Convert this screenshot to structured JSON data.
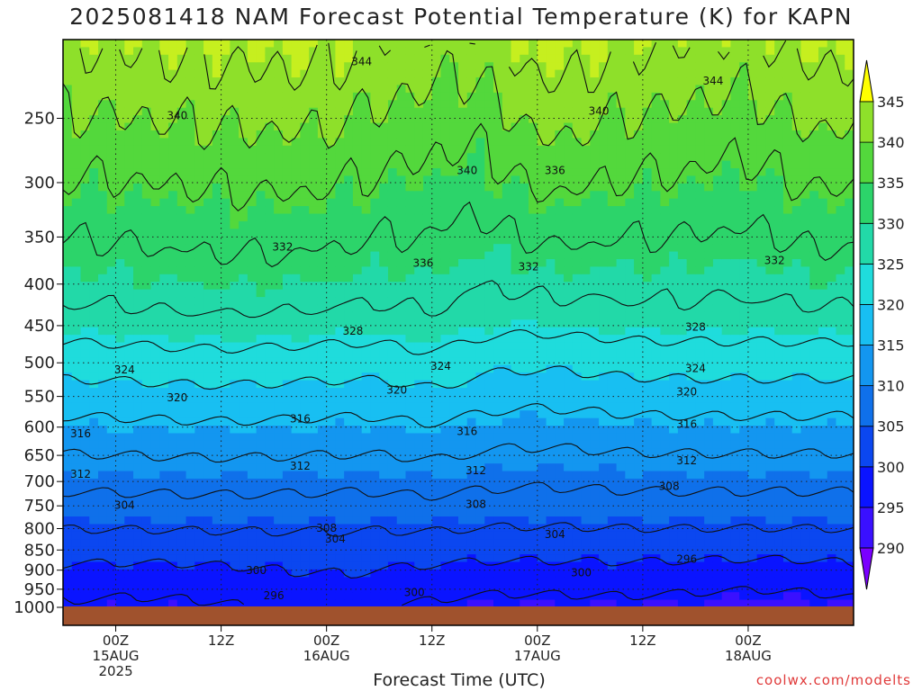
{
  "title": "2025081418 NAM Forecast Potential Temperature (K) for KAPN",
  "credit": "coolwx.com/modelts",
  "chart_data": {
    "type": "contour",
    "title": "2025081418 NAM Forecast Potential Temperature (K) for KAPN",
    "xlabel": "Forecast Time (UTC)",
    "ylabel": "",
    "y_scale": "log-pressure",
    "y_range_hPa": [
      200,
      1000
    ],
    "x_range_hours": [
      -6,
      84
    ],
    "y_ticks": [
      250,
      300,
      350,
      400,
      450,
      500,
      550,
      600,
      650,
      700,
      750,
      800,
      850,
      900,
      950,
      1000
    ],
    "x_ticks": [
      {
        "hour": 0,
        "lines": [
          "00Z",
          "15AUG",
          "2025"
        ]
      },
      {
        "hour": 12,
        "lines": [
          "12Z"
        ]
      },
      {
        "hour": 24,
        "lines": [
          "00Z",
          "16AUG"
        ]
      },
      {
        "hour": 36,
        "lines": [
          "12Z"
        ]
      },
      {
        "hour": 48,
        "lines": [
          "00Z",
          "17AUG"
        ]
      },
      {
        "hour": 60,
        "lines": [
          "12Z"
        ]
      },
      {
        "hour": 72,
        "lines": [
          "00Z",
          "18AUG"
        ]
      }
    ],
    "colorbar": {
      "levels": [
        290,
        295,
        300,
        305,
        310,
        315,
        320,
        325,
        330,
        335,
        340,
        345
      ],
      "colors": [
        "#7a00ff",
        "#3a10ff",
        "#0a14ff",
        "#0b47f0",
        "#0f70ea",
        "#1396f0",
        "#18bff2",
        "#1fdcdc",
        "#22d9a8",
        "#2cd46a",
        "#53d83c",
        "#8ee02a",
        "#c6ef1f",
        "#ffff00"
      ]
    },
    "contour_labels": [
      {
        "value": 344,
        "hour": 28,
        "p": 213
      },
      {
        "value": 344,
        "hour": 68,
        "p": 225
      },
      {
        "value": 340,
        "hour": 7,
        "p": 248
      },
      {
        "value": 340,
        "hour": 40,
        "p": 290
      },
      {
        "value": 340,
        "hour": 55,
        "p": 245
      },
      {
        "value": 336,
        "hour": 35,
        "p": 377
      },
      {
        "value": 336,
        "hour": 50,
        "p": 290
      },
      {
        "value": 332,
        "hour": 19,
        "p": 360
      },
      {
        "value": 332,
        "hour": 47,
        "p": 381
      },
      {
        "value": 332,
        "hour": 75,
        "p": 374
      },
      {
        "value": 328,
        "hour": 27,
        "p": 457
      },
      {
        "value": 328,
        "hour": 66,
        "p": 452
      },
      {
        "value": 324,
        "hour": 1,
        "p": 510
      },
      {
        "value": 324,
        "hour": 37,
        "p": 505
      },
      {
        "value": 324,
        "hour": 66,
        "p": 508
      },
      {
        "value": 320,
        "hour": 7,
        "p": 552
      },
      {
        "value": 320,
        "hour": 32,
        "p": 540
      },
      {
        "value": 320,
        "hour": 65,
        "p": 543
      },
      {
        "value": 316,
        "hour": -4,
        "p": 611
      },
      {
        "value": 316,
        "hour": 21,
        "p": 586
      },
      {
        "value": 316,
        "hour": 40,
        "p": 607
      },
      {
        "value": 316,
        "hour": 65,
        "p": 595
      },
      {
        "value": 312,
        "hour": -4,
        "p": 686
      },
      {
        "value": 312,
        "hour": 21,
        "p": 670
      },
      {
        "value": 312,
        "hour": 41,
        "p": 679
      },
      {
        "value": 312,
        "hour": 65,
        "p": 660
      },
      {
        "value": 308,
        "hour": 41,
        "p": 747
      },
      {
        "value": 308,
        "hour": 24,
        "p": 799
      },
      {
        "value": 308,
        "hour": 63,
        "p": 710
      },
      {
        "value": 304,
        "hour": 1,
        "p": 749
      },
      {
        "value": 304,
        "hour": 25,
        "p": 824
      },
      {
        "value": 304,
        "hour": 50,
        "p": 813
      },
      {
        "value": 300,
        "hour": 16,
        "p": 901
      },
      {
        "value": 300,
        "hour": 53,
        "p": 907
      },
      {
        "value": 300,
        "hour": 34,
        "p": 959
      },
      {
        "value": 296,
        "hour": 65,
        "p": 872
      },
      {
        "value": 296,
        "hour": 18,
        "p": 968
      }
    ]
  }
}
